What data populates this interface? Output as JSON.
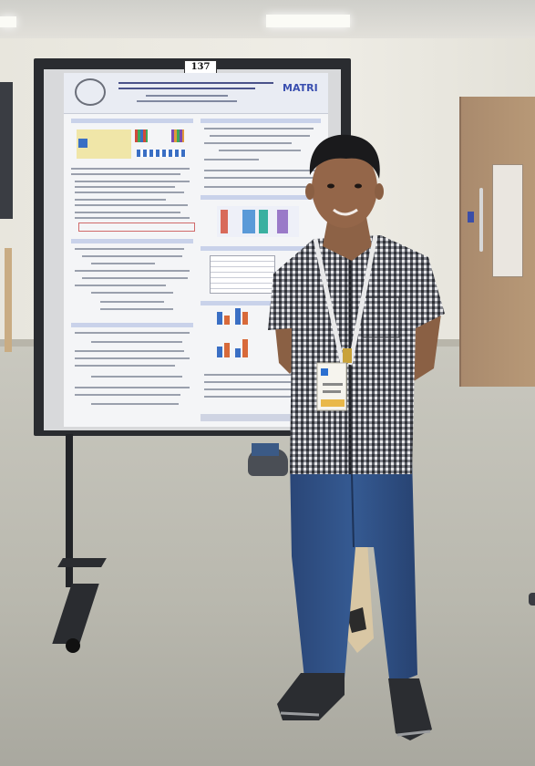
{
  "scene": {
    "description_hidden": true
  },
  "poster": {
    "board_number": "137",
    "logo_text": "MATRI"
  },
  "colors": {
    "wall": "#ece9e1",
    "floor": "#bcbbb1",
    "board": "#2a2c30",
    "shirt_check": "#3a3d44",
    "jeans": "#2e4a78",
    "door": "#b09273"
  }
}
